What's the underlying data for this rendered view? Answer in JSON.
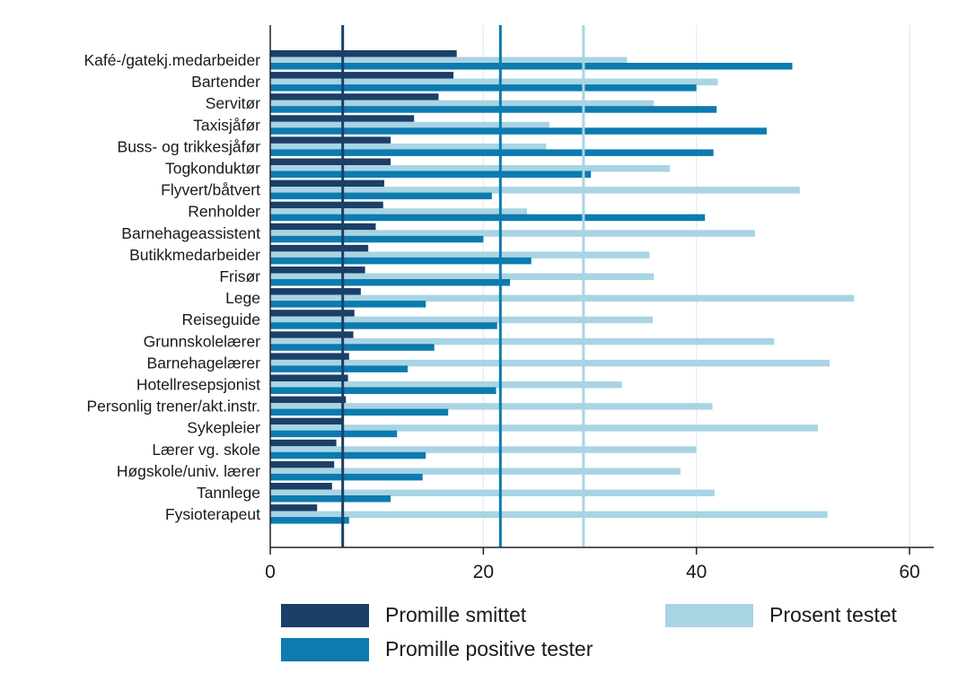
{
  "chart_data": {
    "type": "bar",
    "orientation": "horizontal",
    "categories": [
      "Kafé-/gatekj.medarbeider",
      "Bartender",
      "Servitør",
      "Taxisjåfør",
      "Buss- og trikkesjåfør",
      "Togkonduktør",
      "Flyvert/båtvert",
      "Renholder",
      "Barnehageassistent",
      "Butikkmedarbeider",
      "Frisør",
      "Lege",
      "Reiseguide",
      "Grunnskolelærer",
      "Barnehagelærer",
      "Hotellresepsjonist",
      "Personlig trener/akt.instr.",
      "Sykepleier",
      "Lærer vg. skole",
      "Høgskole/univ. lærer",
      "Tannlege",
      "Fysioterapeut"
    ],
    "series": [
      {
        "name": "Promille smittet",
        "color": "#1b3f66",
        "values": [
          17.5,
          17.2,
          15.8,
          13.5,
          11.3,
          11.3,
          10.7,
          10.6,
          9.9,
          9.2,
          8.9,
          8.5,
          7.9,
          7.8,
          7.4,
          7.3,
          7.1,
          6.9,
          6.2,
          6.0,
          5.8,
          4.4
        ]
      },
      {
        "name": "Prosent testet",
        "color": "#a9d4e4",
        "values": [
          33.5,
          42.0,
          36.0,
          26.2,
          25.9,
          37.5,
          49.7,
          24.1,
          45.5,
          35.6,
          36.0,
          54.8,
          35.9,
          47.3,
          52.5,
          33.0,
          41.5,
          51.4,
          40.0,
          38.5,
          41.7,
          52.3
        ]
      },
      {
        "name": "Promille positive tester",
        "color": "#0b7bb0",
        "values": [
          49.0,
          40.0,
          41.9,
          46.6,
          41.6,
          30.1,
          20.8,
          40.8,
          20.0,
          24.5,
          22.5,
          14.6,
          21.3,
          15.4,
          12.9,
          21.2,
          16.7,
          11.9,
          14.6,
          14.3,
          11.3,
          7.4
        ]
      }
    ],
    "reference_lines": [
      {
        "series": "Promille smittet",
        "value": 6.8,
        "color": "#1b3f66"
      },
      {
        "series": "Promille positive tester",
        "value": 21.6,
        "color": "#0b7bb0"
      },
      {
        "series": "Prosent testet",
        "value": 29.4,
        "color": "#a9d4e4"
      }
    ],
    "xlim": [
      0,
      62
    ],
    "xticks": [
      0,
      20,
      40,
      60
    ],
    "xlabel": "",
    "ylabel": "",
    "title": "",
    "grid": "vertical",
    "legend_placement": "bottom"
  },
  "legend": [
    {
      "label": "Promille smittet",
      "color": "#1b3f66"
    },
    {
      "label": "Prosent testet",
      "color": "#a9d4e4"
    },
    {
      "label": "Promille positive tester",
      "color": "#0b7bb0"
    }
  ]
}
